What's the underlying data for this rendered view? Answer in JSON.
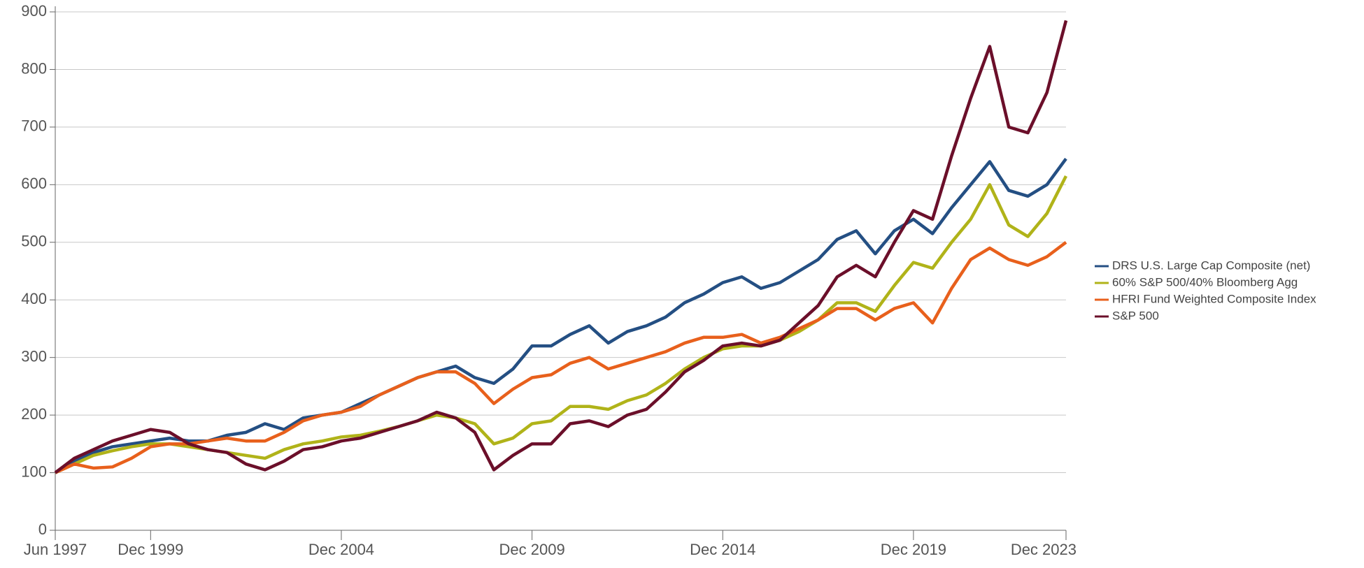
{
  "chart_data": {
    "type": "line",
    "x": [
      "Jun 1997",
      "Dec 1997",
      "Jun 1998",
      "Dec 1998",
      "Jun 1999",
      "Dec 1999",
      "Jun 2000",
      "Dec 2000",
      "Jun 2001",
      "Dec 2001",
      "Jun 2002",
      "Dec 2002",
      "Jun 2003",
      "Dec 2003",
      "Jun 2004",
      "Dec 2004",
      "Jun 2005",
      "Dec 2005",
      "Jun 2006",
      "Dec 2006",
      "Jun 2007",
      "Dec 2007",
      "Jun 2008",
      "Dec 2008",
      "Jun 2009",
      "Dec 2009",
      "Jun 2010",
      "Dec 2010",
      "Jun 2011",
      "Dec 2011",
      "Jun 2012",
      "Dec 2012",
      "Jun 2013",
      "Dec 2013",
      "Jun 2014",
      "Dec 2014",
      "Jun 2015",
      "Dec 2015",
      "Jun 2016",
      "Dec 2016",
      "Jun 2017",
      "Dec 2017",
      "Jun 2018",
      "Dec 2018",
      "Jun 2019",
      "Dec 2019",
      "Jun 2020",
      "Dec 2020",
      "Jun 2021",
      "Dec 2021",
      "Jun 2022",
      "Dec 2022",
      "Jun 2023",
      "Dec 2023"
    ],
    "xticks": [
      "Jun 1997",
      "Dec 1999",
      "Dec 2004",
      "Dec 2009",
      "Dec 2014",
      "Dec 2019",
      "Dec 2023"
    ],
    "series": [
      {
        "name": "DRS U.S. Large Cap Composite (net)",
        "color": "#244f83",
        "values": [
          100,
          120,
          135,
          145,
          150,
          155,
          160,
          155,
          155,
          165,
          170,
          185,
          175,
          195,
          200,
          205,
          220,
          235,
          250,
          265,
          275,
          285,
          265,
          255,
          280,
          320,
          320,
          340,
          355,
          325,
          345,
          355,
          370,
          395,
          410,
          430,
          440,
          420,
          430,
          450,
          470,
          505,
          520,
          480,
          520,
          540,
          515,
          560,
          600,
          640,
          590,
          580,
          600,
          645
        ]
      },
      {
        "name": "60% S&P 500/40% Bloomberg Agg",
        "color": "#b0b319",
        "values": [
          100,
          115,
          130,
          138,
          145,
          150,
          150,
          145,
          140,
          135,
          130,
          125,
          140,
          150,
          155,
          162,
          165,
          172,
          180,
          190,
          200,
          195,
          185,
          150,
          160,
          185,
          190,
          215,
          215,
          210,
          225,
          235,
          255,
          280,
          300,
          315,
          320,
          320,
          330,
          345,
          365,
          395,
          395,
          380,
          425,
          465,
          455,
          500,
          540,
          600,
          530,
          510,
          550,
          615
        ]
      },
      {
        "name": "HFRI Fund Weighted Composite Index",
        "color": "#e8601c",
        "values": [
          100,
          115,
          108,
          110,
          125,
          145,
          150,
          150,
          155,
          160,
          155,
          155,
          170,
          190,
          200,
          205,
          215,
          235,
          250,
          265,
          275,
          275,
          255,
          220,
          245,
          265,
          270,
          290,
          300,
          280,
          290,
          300,
          310,
          325,
          335,
          335,
          340,
          325,
          335,
          350,
          365,
          385,
          385,
          365,
          385,
          395,
          360,
          420,
          470,
          490,
          470,
          460,
          475,
          500
        ]
      },
      {
        "name": "S&P 500",
        "color": "#6b0f2a",
        "values": [
          100,
          125,
          140,
          155,
          165,
          175,
          170,
          150,
          140,
          135,
          115,
          105,
          120,
          140,
          145,
          155,
          160,
          170,
          180,
          190,
          205,
          195,
          170,
          105,
          130,
          150,
          150,
          185,
          190,
          180,
          200,
          210,
          240,
          275,
          295,
          320,
          325,
          320,
          330,
          360,
          390,
          440,
          460,
          440,
          500,
          555,
          540,
          650,
          750,
          840,
          700,
          690,
          760,
          885
        ]
      }
    ],
    "ylim": [
      0,
      900
    ],
    "yticks": [
      0,
      100,
      200,
      300,
      400,
      500,
      600,
      700,
      800,
      900
    ],
    "grid": true
  }
}
